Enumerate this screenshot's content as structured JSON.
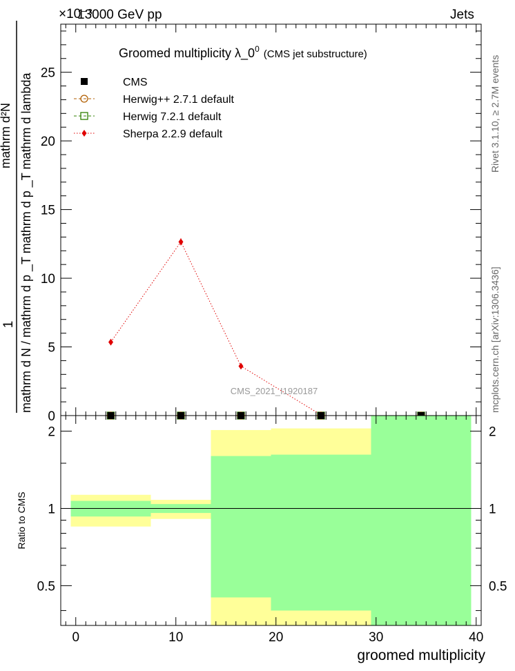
{
  "header": {
    "energy_label": "13000 GeV pp",
    "process_label": "Jets",
    "exponent_label": "×10⁻³"
  },
  "side_labels": {
    "rivet": "Rivet 3.1.10, ≥ 2.7M events",
    "mcplots": "mcplots.cern.ch [arXiv:1306.3436]"
  },
  "watermark": "CMS_2021_I1920187",
  "chart_data": [
    {
      "type": "line",
      "title": "Groomed multiplicity  λ_0⁰ (CMS jet substructure)",
      "title_main": "Groomed multiplicity  λ_0",
      "title_sup": "0",
      "title_tail": "(CMS jet substructure)",
      "xlabel": "groomed multiplicity",
      "ylabel_numerator": "1",
      "ylabel_denominator": "mathrm d N / mathrm d p _T mathrm d p _T mathrm d lambda",
      "ylabel_top": "mathrm d²N",
      "xlim": [
        -1.5,
        40.5
      ],
      "ylim": [
        0,
        28.5
      ],
      "y_scale_note": "×10⁻³",
      "x_ticks": [
        0,
        10,
        20,
        30,
        40
      ],
      "y_ticks": [
        0,
        5,
        10,
        15,
        20,
        25
      ],
      "legend_position": "top-left",
      "series": [
        {
          "name": "CMS",
          "color": "#000000",
          "marker": "square-filled",
          "x": [
            3.5,
            10.5,
            16.5,
            24.5,
            34.5
          ],
          "y": [
            0.0,
            0.0,
            0.0,
            0.0,
            0.0
          ]
        },
        {
          "name": "Herwig++ 2.7.1 default",
          "color": "#b15e00",
          "marker": "circle-open",
          "line": "dashed",
          "x": [
            3.5,
            10.5,
            16.5,
            24.5,
            34.5
          ],
          "y": [
            0.0,
            0.0,
            0.0,
            0.0,
            0.0
          ]
        },
        {
          "name": "Herwig 7.2.1 default",
          "color": "#2f7f00",
          "marker": "square-open",
          "line": "dashed",
          "x": [
            3.5,
            10.5,
            16.5,
            24.5,
            34.5
          ],
          "y": [
            0.0,
            0.0,
            0.0,
            0.0,
            0.0
          ]
        },
        {
          "name": "Sherpa 2.2.9 default",
          "color": "#e00000",
          "marker": "diamond-filled",
          "line": "dotted",
          "x": [
            3.5,
            10.5,
            16.5,
            24.5
          ],
          "y": [
            5.35,
            12.65,
            3.6,
            0.05
          ],
          "err": [
            0.15,
            0.25,
            0.12,
            0.05
          ]
        }
      ]
    },
    {
      "type": "area",
      "ylabel": "Ratio to CMS",
      "xlabel": "groomed multiplicity",
      "xlim": [
        -1.5,
        40.5
      ],
      "ylim": [
        0.35,
        2.3
      ],
      "y_ticks": [
        0.5,
        1,
        2
      ],
      "x_ticks": [
        0,
        10,
        20,
        30,
        40
      ],
      "reference_line": 1,
      "bands": [
        {
          "x": [
            -0.5,
            7.5
          ],
          "stat_lo": 0.93,
          "stat_hi": 1.07,
          "tot_lo": 0.85,
          "tot_hi": 1.13
        },
        {
          "x": [
            7.5,
            13.5
          ],
          "stat_lo": 0.96,
          "stat_hi": 1.04,
          "tot_lo": 0.91,
          "tot_hi": 1.08
        },
        {
          "x": [
            13.5,
            19.5
          ],
          "stat_lo": 0.45,
          "stat_hi": 1.6,
          "tot_lo": 0.35,
          "tot_hi": 2.02
        },
        {
          "x": [
            19.5,
            29.5
          ],
          "stat_lo": 0.4,
          "stat_hi": 1.62,
          "tot_lo": 0.35,
          "tot_hi": 2.05
        },
        {
          "x": [
            29.5,
            39.5
          ],
          "stat_lo": 0.35,
          "stat_hi": 2.3,
          "tot_lo": 0.35,
          "tot_hi": 2.3
        }
      ],
      "colors": {
        "stat": "#99ff99",
        "total": "#ffff99"
      }
    }
  ]
}
